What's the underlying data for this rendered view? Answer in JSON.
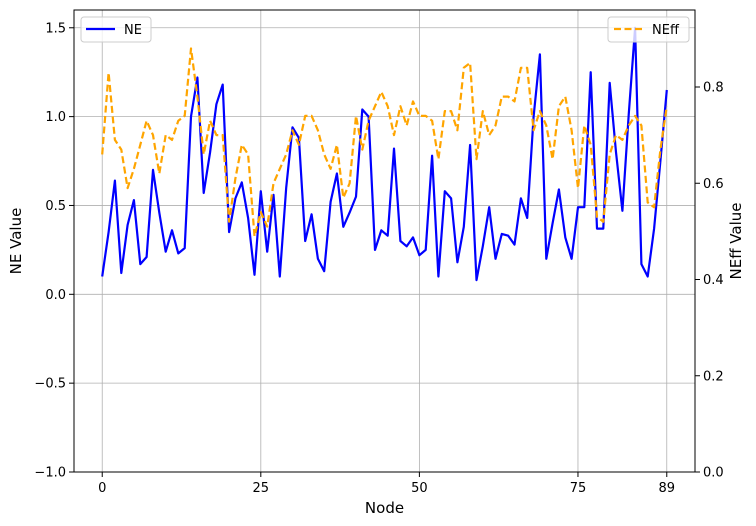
{
  "chart_data": {
    "type": "line",
    "xlabel": "Node",
    "ylabel_left": "NE Value",
    "ylabel_right": "NEff Value",
    "xlim": [
      -4.45,
      93.45
    ],
    "ylim_left": [
      -1.0,
      1.6
    ],
    "ylim_right": [
      0.0,
      0.96
    ],
    "xticks": [
      0,
      25,
      50,
      75,
      89
    ],
    "xtick_labels": [
      "0",
      "25",
      "50",
      "75",
      "89"
    ],
    "yticks_left": [
      -1.0,
      -0.5,
      0.0,
      0.5,
      1.0,
      1.5
    ],
    "ytick_labels_left": [
      "−1.0",
      "−0.5",
      "0.0",
      "0.5",
      "1.0",
      "1.5"
    ],
    "yticks_right": [
      0.0,
      0.2,
      0.4,
      0.6,
      0.8
    ],
    "ytick_labels_right": [
      "0.0",
      "0.2",
      "0.4",
      "0.6",
      "0.8"
    ],
    "grid": true,
    "series": [
      {
        "name": "NE",
        "axis": "left",
        "color": "#0000ff",
        "style": "solid",
        "legend_position": "upper-left",
        "x": [
          0,
          1,
          2,
          3,
          4,
          5,
          6,
          7,
          8,
          9,
          10,
          11,
          12,
          13,
          14,
          15,
          16,
          17,
          18,
          19,
          20,
          21,
          22,
          23,
          24,
          25,
          26,
          27,
          28,
          29,
          30,
          31,
          32,
          33,
          34,
          35,
          36,
          37,
          38,
          39,
          40,
          41,
          42,
          43,
          44,
          45,
          46,
          47,
          48,
          49,
          50,
          51,
          52,
          53,
          54,
          55,
          56,
          57,
          58,
          59,
          60,
          61,
          62,
          63,
          64,
          65,
          66,
          67,
          68,
          69,
          70,
          71,
          72,
          73,
          74,
          75,
          76,
          77,
          78,
          79,
          80,
          81,
          82,
          83,
          84,
          85,
          86,
          87,
          88,
          89
        ],
        "values": [
          0.1,
          0.35,
          0.64,
          0.12,
          0.39,
          0.53,
          0.17,
          0.21,
          0.7,
          0.46,
          0.24,
          0.36,
          0.23,
          0.26,
          1.0,
          1.22,
          0.57,
          0.8,
          1.07,
          1.18,
          0.35,
          0.54,
          0.63,
          0.43,
          0.11,
          0.58,
          0.24,
          0.56,
          0.1,
          0.6,
          0.94,
          0.88,
          0.3,
          0.45,
          0.2,
          0.13,
          0.52,
          0.68,
          0.38,
          0.46,
          0.55,
          1.04,
          1.0,
          0.25,
          0.36,
          0.33,
          0.82,
          0.3,
          0.27,
          0.32,
          0.22,
          0.25,
          0.78,
          0.1,
          0.58,
          0.54,
          0.18,
          0.38,
          0.84,
          0.08,
          0.27,
          0.49,
          0.2,
          0.34,
          0.33,
          0.28,
          0.54,
          0.43,
          1.0,
          1.35,
          0.2,
          0.4,
          0.59,
          0.32,
          0.2,
          0.49,
          0.49,
          1.25,
          0.37,
          0.37,
          1.19,
          0.8,
          0.47,
          1.01,
          1.5,
          0.17,
          0.1,
          0.37,
          0.75,
          1.15
        ]
      },
      {
        "name": "NEff",
        "axis": "right",
        "color": "#ffa500",
        "style": "dashed",
        "legend_position": "upper-right",
        "x": [
          0,
          1,
          2,
          3,
          4,
          5,
          6,
          7,
          8,
          9,
          10,
          11,
          12,
          13,
          14,
          15,
          16,
          17,
          18,
          19,
          20,
          21,
          22,
          23,
          24,
          25,
          26,
          27,
          28,
          29,
          30,
          31,
          32,
          33,
          34,
          35,
          36,
          37,
          38,
          39,
          40,
          41,
          42,
          43,
          44,
          45,
          46,
          47,
          48,
          49,
          50,
          51,
          52,
          53,
          54,
          55,
          56,
          57,
          58,
          59,
          60,
          61,
          62,
          63,
          64,
          65,
          66,
          67,
          68,
          69,
          70,
          71,
          72,
          73,
          74,
          75,
          76,
          77,
          78,
          79,
          80,
          81,
          82,
          83,
          84,
          85,
          86,
          87,
          88,
          89
        ],
        "values": [
          0.66,
          0.83,
          0.69,
          0.67,
          0.59,
          0.63,
          0.68,
          0.73,
          0.7,
          0.62,
          0.7,
          0.69,
          0.73,
          0.74,
          0.88,
          0.78,
          0.66,
          0.73,
          0.7,
          0.7,
          0.52,
          0.61,
          0.68,
          0.66,
          0.49,
          0.54,
          0.51,
          0.6,
          0.63,
          0.66,
          0.71,
          0.68,
          0.74,
          0.74,
          0.71,
          0.66,
          0.63,
          0.68,
          0.57,
          0.6,
          0.74,
          0.67,
          0.73,
          0.76,
          0.79,
          0.76,
          0.7,
          0.76,
          0.72,
          0.77,
          0.74,
          0.74,
          0.73,
          0.65,
          0.75,
          0.75,
          0.71,
          0.84,
          0.85,
          0.65,
          0.75,
          0.7,
          0.72,
          0.78,
          0.78,
          0.77,
          0.84,
          0.84,
          0.71,
          0.75,
          0.72,
          0.65,
          0.76,
          0.78,
          0.71,
          0.59,
          0.72,
          0.68,
          0.53,
          0.52,
          0.66,
          0.7,
          0.69,
          0.72,
          0.74,
          0.72,
          0.56,
          0.55,
          0.67,
          0.76
        ]
      }
    ]
  }
}
